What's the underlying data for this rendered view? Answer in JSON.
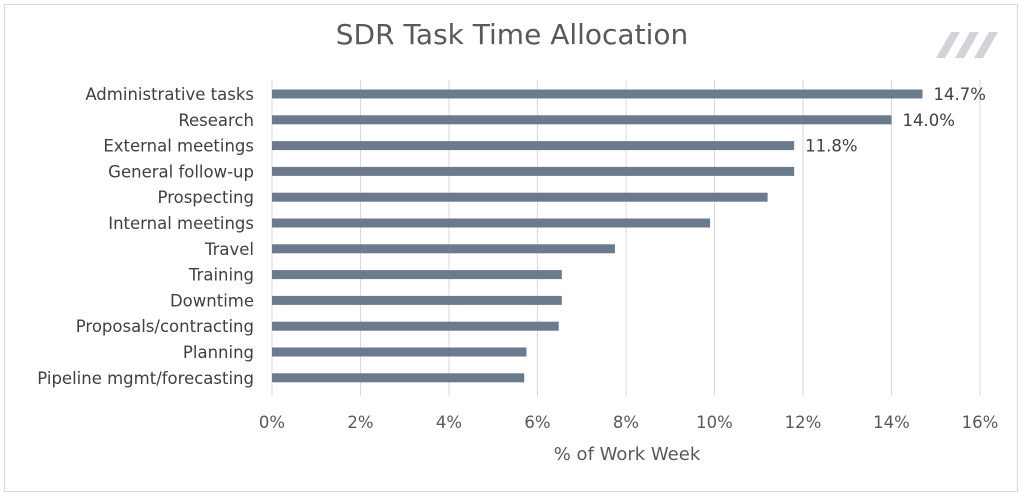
{
  "chart_data": {
    "type": "bar",
    "orientation": "horizontal",
    "title": "SDR Task Time Allocation",
    "xlabel": "% of Work Week",
    "ylabel": "",
    "xlim": [
      0,
      16
    ],
    "x_ticks": [
      "0%",
      "2%",
      "4%",
      "6%",
      "8%",
      "10%",
      "12%",
      "14%",
      "16%"
    ],
    "grid": "vertical",
    "bar_color": "#6b7a8c",
    "categories": [
      "Administrative tasks",
      "Research",
      "External meetings",
      "General follow-up",
      "Prospecting",
      "Internal meetings",
      "Travel",
      "Training",
      "Downtime",
      "Proposals/contracting",
      "Planning",
      "Pipeline mgmt/forecasting"
    ],
    "values": [
      14.7,
      14.0,
      11.8,
      11.8,
      11.2,
      9.9,
      7.75,
      6.55,
      6.55,
      6.48,
      5.75,
      5.7
    ],
    "data_labels": [
      "14.7%",
      "14.0%",
      "11.8%",
      null,
      null,
      null,
      null,
      null,
      null,
      null,
      null,
      null
    ]
  },
  "logo": {
    "name": "slash-stripes-logo",
    "color": "#d0d4d9"
  }
}
